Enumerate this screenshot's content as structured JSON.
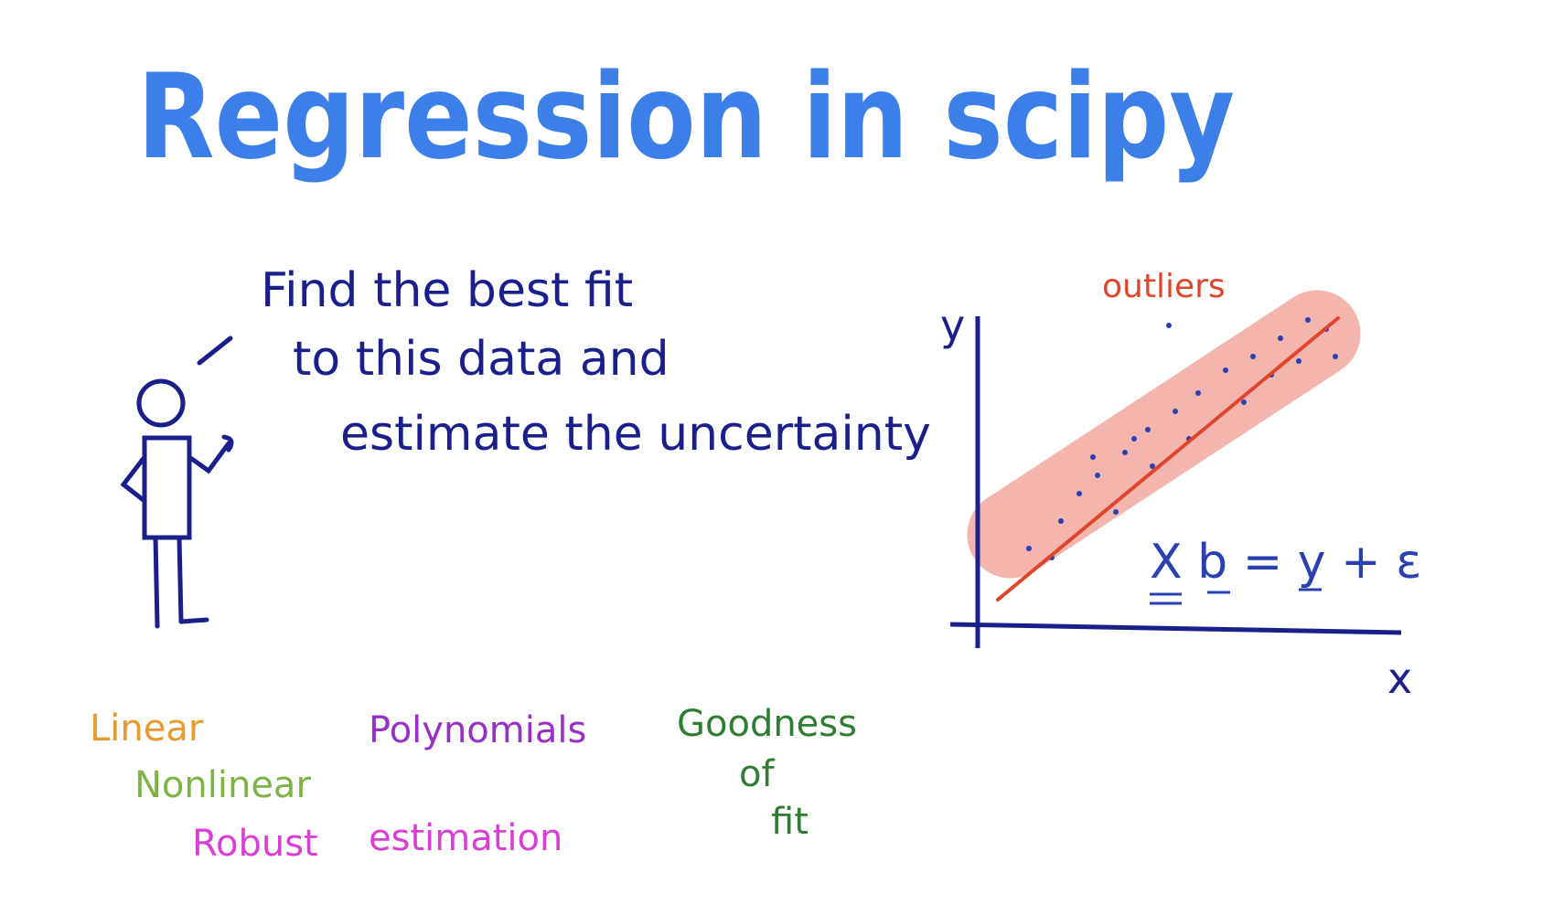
{
  "title": {
    "text": "Regression in scipy",
    "color": "#3d7fe8"
  },
  "speech": {
    "lines": [
      "Find  the  best  fit",
      "to  this  data  and",
      "estimate  the  uncertainty"
    ],
    "color": "#1a1f8c"
  },
  "plot": {
    "y_label": "y",
    "x_label": "x",
    "annotation": "outliers",
    "annotation_color": "#e0442a",
    "equation": "X  b  =  y  + ε",
    "line_color": "#e0442a",
    "band_color": "#f3b5ae"
  },
  "topics": [
    {
      "lines": [
        "Linear"
      ],
      "color": "#e89a30"
    },
    {
      "lines": [
        "Nonlinear"
      ],
      "color": "#7cb342"
    },
    {
      "lines": [
        "Robust",
        "estimation"
      ],
      "color": "#d83fd4"
    },
    {
      "lines": [
        "Polynomials"
      ],
      "color": "#9a2fc4"
    },
    {
      "lines": [
        "Goodness",
        "of",
        "fit"
      ],
      "color": "#2e7d32"
    }
  ]
}
